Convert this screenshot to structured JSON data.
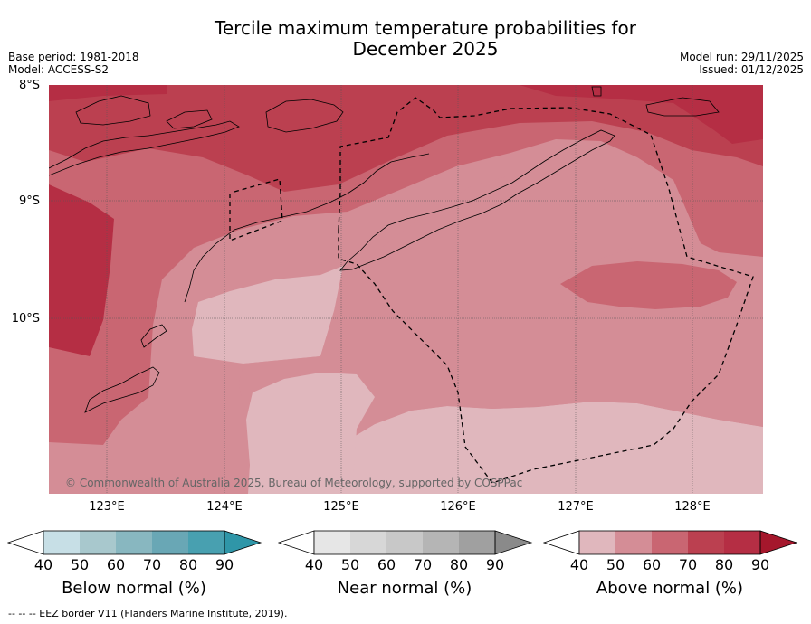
{
  "header": {
    "title_line1": "Tercile maximum temperature probabilities for",
    "title_line2": "December 2025",
    "base_period": "Base period: 1981-2018",
    "model": "Model: ACCESS-S2",
    "model_run": "Model run: 29/11/2025",
    "issued": "Issued: 01/12/2025"
  },
  "map": {
    "lat_labels": [
      "8°S",
      "9°S",
      "10°S"
    ],
    "lon_labels": [
      "123°E",
      "124°E",
      "125°E",
      "126°E",
      "127°E",
      "128°E"
    ],
    "credit": "© Commonwealth of Australia 2025, Bureau of Meteorology, supported by COSPPac",
    "colors": {
      "above_50": "#e0b7bd",
      "above_60": "#d48d96",
      "above_70": "#c96672",
      "above_80": "#bb4050",
      "above_90": "#a5172c",
      "land_outline": "#000000",
      "eez": "#000000",
      "grid": "#444444"
    }
  },
  "legend": {
    "ticks": [
      "40",
      "50",
      "60",
      "70",
      "80",
      "90"
    ],
    "below": {
      "label": "Below normal (%)",
      "colors": [
        "#c7dfe6",
        "#a8c8cd",
        "#88b7c0",
        "#69a7b5",
        "#48a0b0",
        "#2f96a8"
      ]
    },
    "near": {
      "label": "Near normal (%)",
      "colors": [
        "#e6e6e6",
        "#d7d7d7",
        "#c8c8c8",
        "#b5b5b5",
        "#a0a0a0",
        "#8a8a8a"
      ]
    },
    "above": {
      "label": "Above normal (%)",
      "colors": [
        "#e0b7bd",
        "#d48d96",
        "#c96672",
        "#bb4050",
        "#b52e44",
        "#a5172c"
      ]
    }
  },
  "footnote": "-- -- -- EEZ border V11 (Flanders Marine Institute, 2019)."
}
